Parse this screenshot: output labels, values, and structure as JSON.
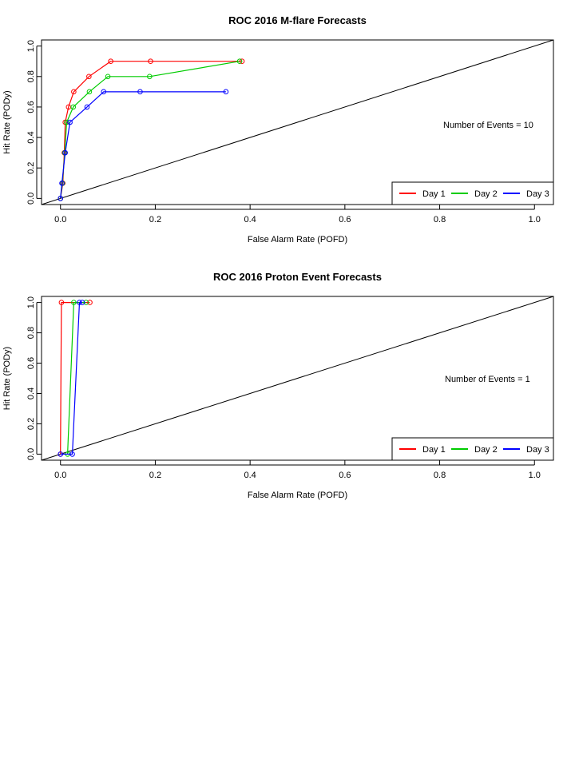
{
  "chart_data": [
    {
      "type": "line",
      "title": "ROC  2016 M-flare Forecasts",
      "xlabel": "False Alarm Rate (POFD)",
      "ylabel": "Hit Rate (PODy)",
      "xlim": [
        -0.04,
        1.04
      ],
      "ylim": [
        -0.04,
        1.04
      ],
      "x_ticks": [
        "0.0",
        "0.2",
        "0.4",
        "0.6",
        "0.8",
        "1.0"
      ],
      "y_ticks": [
        "0.0",
        "0.2",
        "0.4",
        "0.6",
        "0.8",
        "1.0"
      ],
      "grid": false,
      "legend_position": "bottom-right",
      "diagonal": true,
      "annotation": "Number of Events =  10",
      "series": [
        {
          "name": "Day 1",
          "color": "#ff0000",
          "points": [
            [
              0.0,
              0.0
            ],
            [
              0.005,
              0.1
            ],
            [
              0.008,
              0.3
            ],
            [
              0.01,
              0.5
            ],
            [
              0.017,
              0.6
            ],
            [
              0.028,
              0.7
            ],
            [
              0.06,
              0.8
            ],
            [
              0.106,
              0.9
            ],
            [
              0.19,
              0.9
            ],
            [
              0.383,
              0.9
            ]
          ]
        },
        {
          "name": "Day 2",
          "color": "#00cc00",
          "points": [
            [
              0.0,
              0.0
            ],
            [
              0.004,
              0.1
            ],
            [
              0.009,
              0.3
            ],
            [
              0.013,
              0.5
            ],
            [
              0.027,
              0.6
            ],
            [
              0.061,
              0.7
            ],
            [
              0.1,
              0.8
            ],
            [
              0.188,
              0.8
            ],
            [
              0.378,
              0.9
            ]
          ]
        },
        {
          "name": "Day 3",
          "color": "#0000ff",
          "points": [
            [
              0.0,
              0.0
            ],
            [
              0.003,
              0.1
            ],
            [
              0.01,
              0.3
            ],
            [
              0.02,
              0.5
            ],
            [
              0.056,
              0.6
            ],
            [
              0.091,
              0.7
            ],
            [
              0.168,
              0.7
            ],
            [
              0.349,
              0.7
            ]
          ]
        }
      ]
    },
    {
      "type": "line",
      "title": "ROC  2016 Proton Event Forecasts",
      "xlabel": "False Alarm Rate (POFD)",
      "ylabel": "Hit Rate (PODy)",
      "xlim": [
        -0.04,
        1.04
      ],
      "ylim": [
        -0.04,
        1.04
      ],
      "x_ticks": [
        "0.0",
        "0.2",
        "0.4",
        "0.6",
        "0.8",
        "1.0"
      ],
      "y_ticks": [
        "0.0",
        "0.2",
        "0.4",
        "0.6",
        "0.8",
        "1.0"
      ],
      "grid": false,
      "legend_position": "bottom-right",
      "diagonal": true,
      "annotation": "Number of Events =  1",
      "series": [
        {
          "name": "Day 1",
          "color": "#ff0000",
          "points": [
            [
              0.0,
              0.0
            ],
            [
              0.002,
              1.0
            ],
            [
              0.062,
              1.0
            ]
          ]
        },
        {
          "name": "Day 2",
          "color": "#00cc00",
          "points": [
            [
              0.015,
              0.0
            ],
            [
              0.028,
              1.0
            ],
            [
              0.054,
              1.0
            ]
          ]
        },
        {
          "name": "Day 3",
          "color": "#0000ff",
          "points": [
            [
              0.0,
              0.0
            ],
            [
              0.025,
              0.0
            ],
            [
              0.04,
              1.0
            ],
            [
              0.046,
              1.0
            ]
          ]
        }
      ]
    }
  ]
}
